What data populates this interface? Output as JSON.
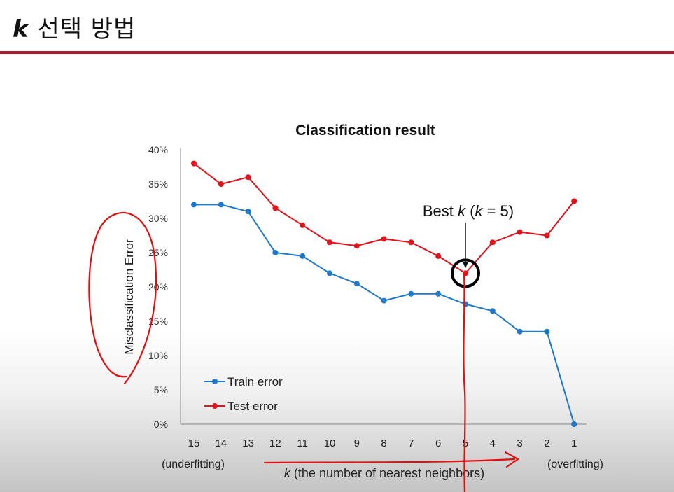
{
  "slide": {
    "title_k": "k",
    "title_rest": "선택 방법"
  },
  "colors": {
    "accent_rule": "#b01c2e",
    "train": "#1f78c8",
    "test": "#e3121b",
    "ink_red": "#e01010"
  },
  "chart_data": {
    "type": "line",
    "title": "Classification result",
    "ylabel": "Misclassification Error",
    "xlabel_k": "k",
    "xlabel_rest": " (the number of nearest neighbors)",
    "left_note": "(underfitting)",
    "right_note": "(overfitting)",
    "categories": [
      "15",
      "14",
      "13",
      "12",
      "11",
      "10",
      "9",
      "8",
      "7",
      "6",
      "5",
      "4",
      "3",
      "2",
      "1"
    ],
    "ylim": [
      0,
      40
    ],
    "yticks": [
      "0%",
      "5%",
      "10%",
      "15%",
      "20%",
      "25%",
      "30%",
      "35%",
      "40%"
    ],
    "grid": false,
    "legend_position": "bottom-left",
    "series": [
      {
        "name": "Train error",
        "values": [
          32,
          32,
          31,
          25,
          24.5,
          22,
          20.5,
          18,
          19,
          19,
          17.5,
          16.5,
          13.5,
          13.5,
          0
        ]
      },
      {
        "name": "Test error",
        "values": [
          38,
          35,
          36,
          31.5,
          29,
          26.5,
          26,
          27,
          26.5,
          24.5,
          22,
          26.5,
          28,
          27.5,
          32.5
        ]
      }
    ],
    "annotation": {
      "prefix": "Best ",
      "k1": "k",
      "mid": " (",
      "k2": "k",
      "suffix": " = 5)",
      "category": "5"
    }
  }
}
